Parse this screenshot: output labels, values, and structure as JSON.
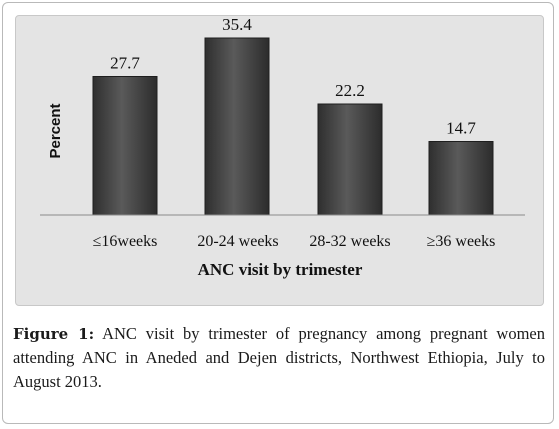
{
  "chart_data": {
    "type": "bar",
    "title": "",
    "xlabel": "ANC visit by trimester",
    "ylabel": "Percent",
    "categories": [
      "≤16weeks",
      "20-24 weeks",
      "28-32 weeks",
      "≥36 weeks"
    ],
    "values": [
      27.7,
      35.4,
      22.2,
      14.7
    ],
    "value_labels": [
      "27.7",
      "35.4",
      "22.2",
      "14.7"
    ],
    "ylim": [
      0,
      40
    ],
    "grid": false,
    "legend": "none",
    "bar_color": "#4a4a4a",
    "background_color": "#e4e4e4"
  },
  "caption": {
    "label": "Figure 1:",
    "text": " ANC visit by trimester of pregnancy among pregnant women attending ANC in Aneded and Dejen districts, Northwest Ethiopia, July to August 2013."
  }
}
